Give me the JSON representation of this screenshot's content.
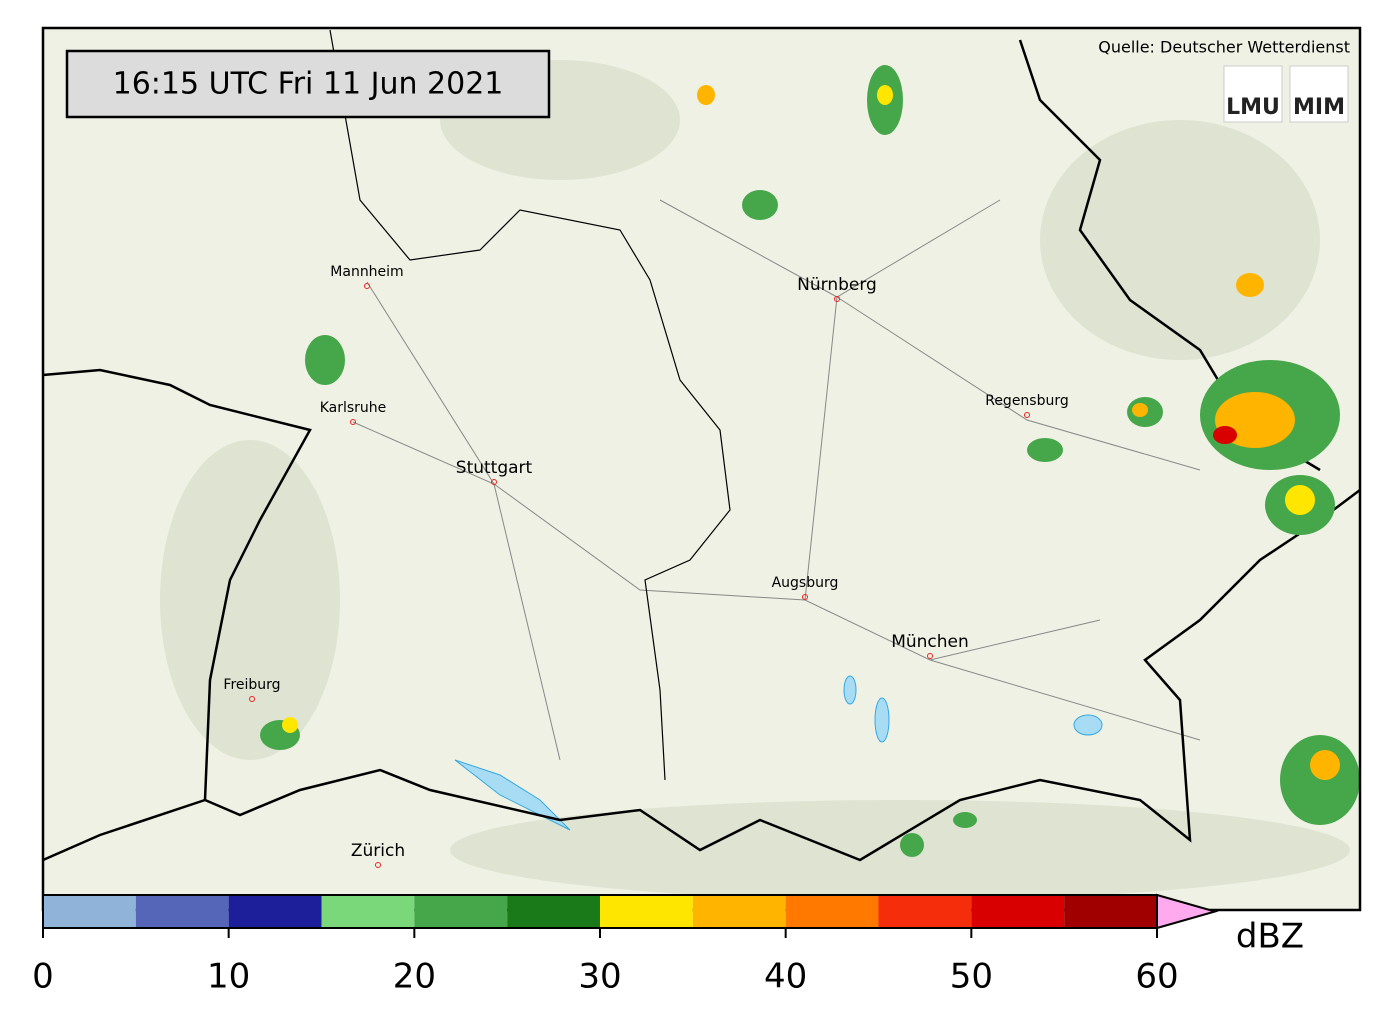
{
  "timestamp": "16:15 UTC  Fri 11 Jun 2021",
  "source": "Quelle: Deutscher Wetterdienst",
  "logos": [
    "LMU",
    "MIM"
  ],
  "cities": [
    {
      "label": "Mannheim"
    },
    {
      "label": "Nürnberg"
    },
    {
      "label": "Karlsruhe"
    },
    {
      "label": "Regensburg"
    },
    {
      "label": "Stuttgart"
    },
    {
      "label": "Augsburg"
    },
    {
      "label": "München"
    },
    {
      "label": "Freiburg"
    },
    {
      "label": "Zürich"
    }
  ],
  "colorbar": {
    "bins": [
      0,
      5,
      10,
      15,
      20,
      25,
      30,
      35,
      40,
      45,
      50,
      55,
      60
    ],
    "colors": [
      "#8fb3d9",
      "#5566b8",
      "#1c1f99",
      "#7ad77a",
      "#45a74a",
      "#1a7a1a",
      "#ffe600",
      "#ffb400",
      "#ff7800",
      "#f52d0a",
      "#d80000",
      "#a00000"
    ],
    "extend_color": "#ffaaee",
    "ticks": [
      0,
      10,
      20,
      30,
      40,
      50,
      60
    ],
    "unit": "dBZ"
  }
}
